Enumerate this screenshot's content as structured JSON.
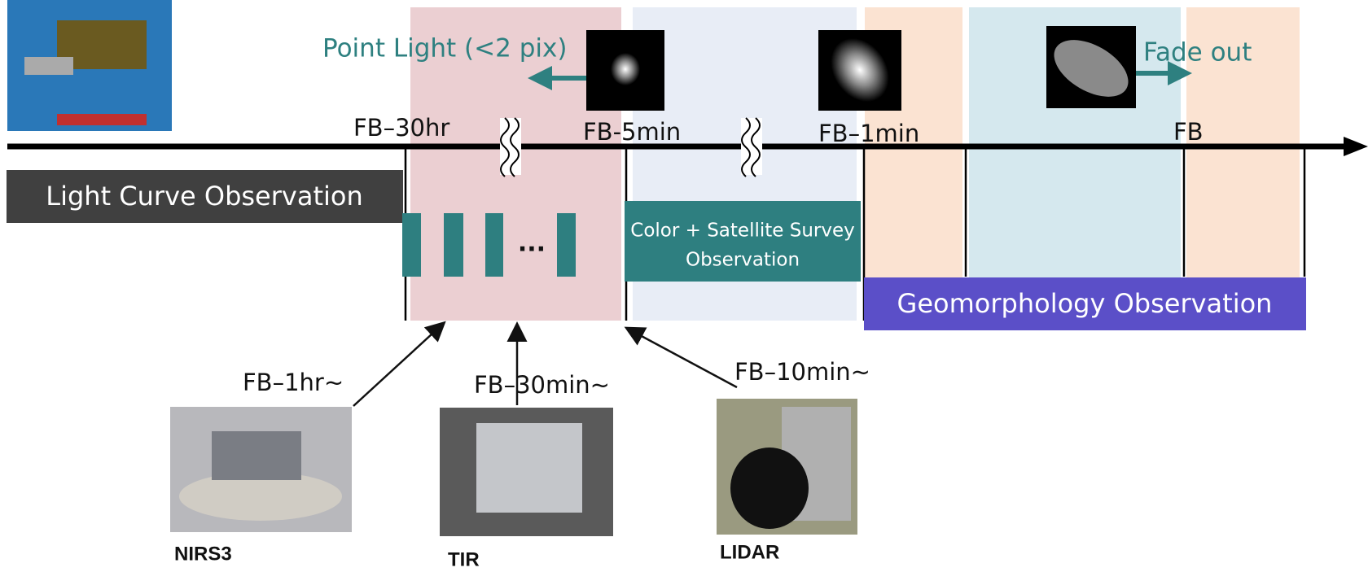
{
  "timeline": {
    "markers": [
      "FB–30hr",
      "FB-5min",
      "FB–1min",
      "FB"
    ],
    "point_light": "Point Light (<2 pix)",
    "fade_out": "Fade out",
    "light_curve": "Light Curve Observation",
    "color_survey": [
      "Color + Satellite Survey",
      "Observation"
    ],
    "ellipsis": "...",
    "geomorphology": "Geomorphology Observation"
  },
  "instruments": [
    {
      "start": "FB–1hr~",
      "name": "NIRS3"
    },
    {
      "start": "FB–30min~",
      "name": "TIR"
    },
    {
      "start": "FB–10min~",
      "name": "LIDAR"
    }
  ]
}
